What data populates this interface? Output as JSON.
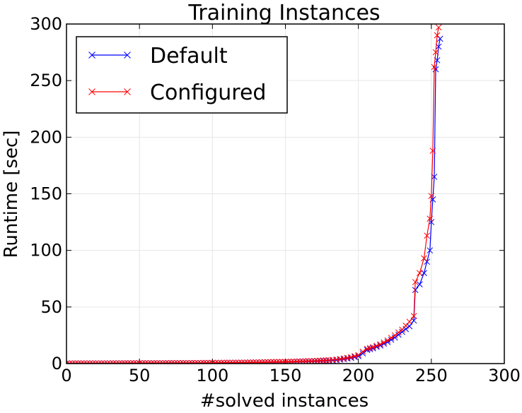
{
  "chart_data": {
    "type": "line",
    "title": "Training Instances",
    "xlabel": "#solved instances",
    "ylabel": "Runtime [sec]",
    "xlim": [
      0,
      300
    ],
    "ylim": [
      0,
      300
    ],
    "xticks": [
      0,
      50,
      100,
      150,
      200,
      250,
      300
    ],
    "yticks": [
      0,
      50,
      100,
      150,
      200,
      250,
      300
    ],
    "grid": true,
    "legend": "top-left",
    "marker": "x",
    "series": [
      {
        "name": "Default",
        "color": "#0000ff",
        "points": [
          [
            0,
            0.1
          ],
          [
            10,
            0.2
          ],
          [
            20,
            0.2
          ],
          [
            30,
            0.2
          ],
          [
            40,
            0.3
          ],
          [
            50,
            0.3
          ],
          [
            60,
            0.3
          ],
          [
            70,
            0.4
          ],
          [
            80,
            0.4
          ],
          [
            90,
            0.5
          ],
          [
            100,
            0.6
          ],
          [
            110,
            0.7
          ],
          [
            120,
            0.8
          ],
          [
            130,
            1.0
          ],
          [
            140,
            1.2
          ],
          [
            150,
            1.4
          ],
          [
            160,
            1.7
          ],
          [
            170,
            2.0
          ],
          [
            180,
            2.6
          ],
          [
            185,
            3.1
          ],
          [
            190,
            4.0
          ],
          [
            195,
            5.0
          ],
          [
            200,
            6.5
          ],
          [
            203,
            9.0
          ],
          [
            206,
            12.0
          ],
          [
            210,
            13.5
          ],
          [
            215,
            16.0
          ],
          [
            220,
            19.0
          ],
          [
            225,
            23.0
          ],
          [
            230,
            28.0
          ],
          [
            235,
            33.0
          ],
          [
            238,
            38.0
          ],
          [
            239,
            65.0
          ],
          [
            242,
            70.0
          ],
          [
            245,
            80.0
          ],
          [
            247,
            90.0
          ],
          [
            249,
            100.0
          ],
          [
            250,
            125.0
          ],
          [
            251,
            145.0
          ],
          [
            252,
            165.0
          ],
          [
            253,
            260.0
          ],
          [
            254,
            268.0
          ],
          [
            255,
            280.0
          ],
          [
            256,
            287.0
          ]
        ]
      },
      {
        "name": "Configured",
        "color": "#ff0000",
        "points": [
          [
            0,
            0.1
          ],
          [
            10,
            0.2
          ],
          [
            20,
            0.2
          ],
          [
            30,
            0.2
          ],
          [
            40,
            0.3
          ],
          [
            50,
            0.3
          ],
          [
            60,
            0.3
          ],
          [
            70,
            0.4
          ],
          [
            80,
            0.4
          ],
          [
            90,
            0.5
          ],
          [
            100,
            0.6
          ],
          [
            110,
            0.7
          ],
          [
            120,
            0.8
          ],
          [
            130,
            1.0
          ],
          [
            140,
            1.3
          ],
          [
            150,
            1.5
          ],
          [
            160,
            1.9
          ],
          [
            170,
            2.3
          ],
          [
            180,
            3.0
          ],
          [
            185,
            3.6
          ],
          [
            190,
            4.5
          ],
          [
            195,
            5.6
          ],
          [
            200,
            7.5
          ],
          [
            203,
            10.5
          ],
          [
            206,
            13.0
          ],
          [
            210,
            14.5
          ],
          [
            215,
            17.0
          ],
          [
            220,
            20.5
          ],
          [
            225,
            25.0
          ],
          [
            230,
            30.0
          ],
          [
            235,
            37.0
          ],
          [
            238,
            42.0
          ],
          [
            239,
            72.0
          ],
          [
            242,
            80.0
          ],
          [
            245,
            93.0
          ],
          [
            247,
            113.0
          ],
          [
            249,
            128.0
          ],
          [
            250,
            148.0
          ],
          [
            251,
            188.0
          ],
          [
            252,
            262.0
          ],
          [
            253,
            275.0
          ],
          [
            254,
            290.0
          ],
          [
            255,
            297.0
          ]
        ]
      }
    ]
  }
}
